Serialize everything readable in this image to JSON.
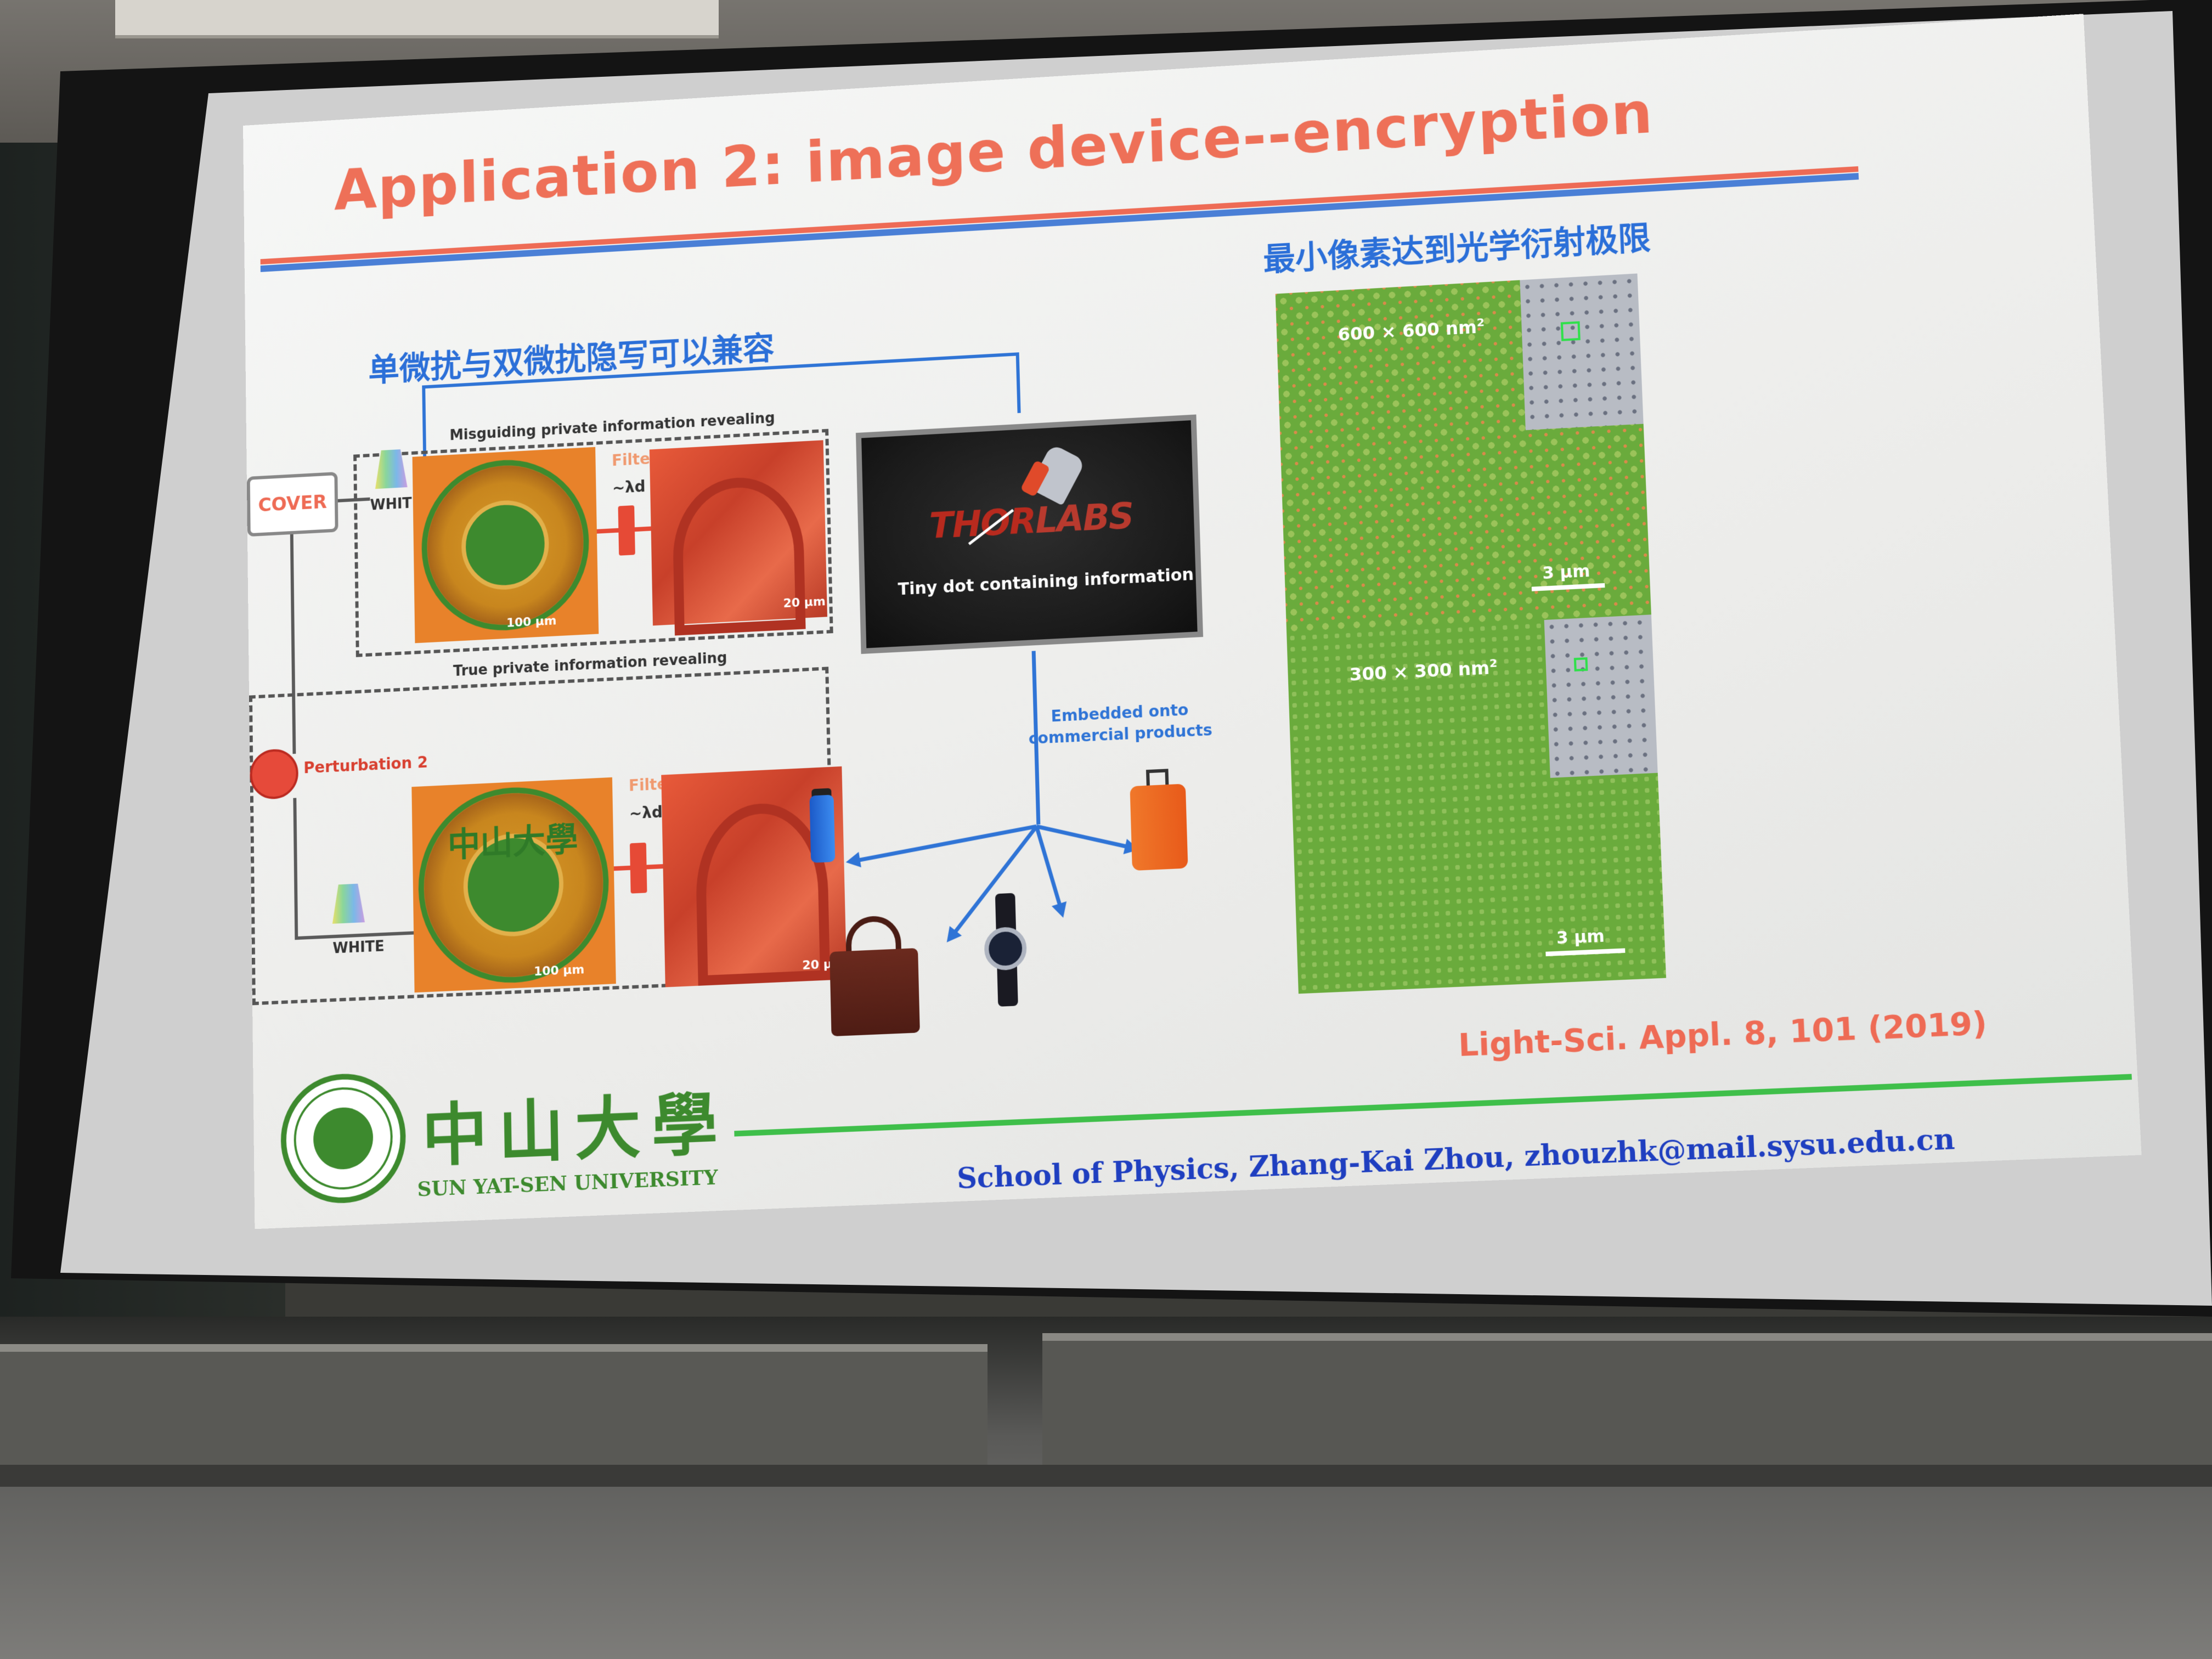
{
  "slide": {
    "title": "Application 2: image device--encryption",
    "subtitle_left": "单微扰与双微扰隐写可以兼容",
    "subtitle_right": "最小像素达到光学衍射极限",
    "misguiding_label": "Misguiding private information revealing",
    "true_label": "True private information revealing",
    "cover_label": "COVER",
    "white_label": "WHITE",
    "filter_label": "Filter",
    "lambda_top": "~λd",
    "lambda_bottom": "~λd'",
    "perturbation_label": "Perturbation 2",
    "scale_100": "100 μm",
    "scale_20": "20 μm",
    "seal_text": "SUN YAT-SEN UNIVERSITY",
    "seal_cn": "中山大學",
    "thor_logo_a": "THOR",
    "thor_logo_b": "LABS",
    "tiny_dot_text": "Tiny dot containing information",
    "embed_line1": "Embedded onto",
    "embed_line2": "commercial products",
    "panel_top_label": "600 × 600 nm",
    "panel_bottom_label": "300 × 300 nm",
    "panel_sup": "2",
    "scale_3um": "3 μm",
    "citation": "Light-Sci. Appl. 8, 101 (2019)",
    "logo_cn": "中山大學",
    "logo_en": "SUN  YAT-SEN UNIVERSITY",
    "footer": "School of Physics, Zhang-Kai Zhou, zhouzhk@mail.sysu.edu.cn"
  },
  "colors": {
    "title": "#ee7058",
    "accent_blue": "#2f74d6",
    "university_green": "#3d8a2e",
    "footer_blue": "#1f3fc0"
  }
}
